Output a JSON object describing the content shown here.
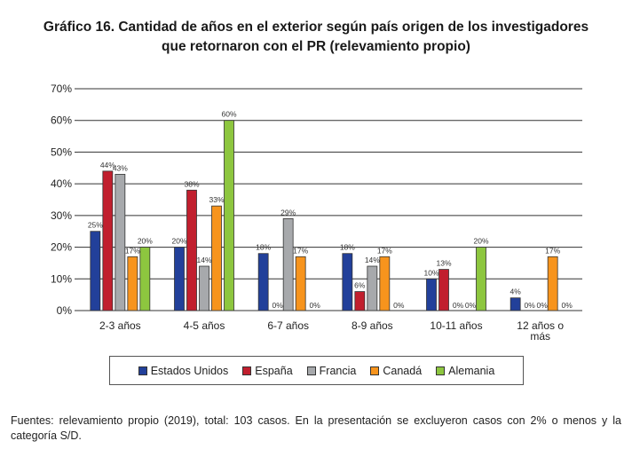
{
  "chart_data": {
    "type": "bar",
    "title_line1": "Gráfico 16. Cantidad de años en el exterior según país origen de los investigadores",
    "title_line2": "que retornaron con el PR (relevamiento propio)",
    "xlabel": "",
    "ylabel": "",
    "ylim": [
      0,
      70
    ],
    "yticks": [
      0,
      10,
      20,
      30,
      40,
      50,
      60,
      70
    ],
    "ytick_labels": [
      "0%",
      "10%",
      "20%",
      "30%",
      "40%",
      "50%",
      "60%",
      "70%"
    ],
    "grid": true,
    "categories": [
      "2-3 años",
      "4-5 años",
      "6-7 años",
      "8-9 años",
      "10-11 años",
      "12 años o más"
    ],
    "category_lines": [
      [
        "2-3 años"
      ],
      [
        "4-5 años"
      ],
      [
        "6-7 años"
      ],
      [
        "8-9 años"
      ],
      [
        "10-11 años"
      ],
      [
        "12 años o",
        "más"
      ]
    ],
    "series": [
      {
        "name": "Estados Unidos",
        "color": "#22409a",
        "values": [
          25,
          20,
          18,
          18,
          10,
          4
        ]
      },
      {
        "name": "España",
        "color": "#c11f2e",
        "values": [
          44,
          38,
          0,
          6,
          13,
          0
        ]
      },
      {
        "name": "Francia",
        "color": "#a7a9ac",
        "values": [
          43,
          14,
          29,
          14,
          0,
          0
        ]
      },
      {
        "name": "Canadá",
        "color": "#f7941d",
        "values": [
          17,
          33,
          17,
          17,
          0,
          17
        ]
      },
      {
        "name": "Alemania",
        "color": "#8dc63f",
        "values": [
          20,
          60,
          0,
          0,
          20,
          0
        ]
      }
    ],
    "legend_position": "bottom"
  },
  "note": "Fuentes: relevamiento propio (2019), total: 103 casos. En la presentación se excluyeron casos con 2% o menos y la categoría S/D."
}
